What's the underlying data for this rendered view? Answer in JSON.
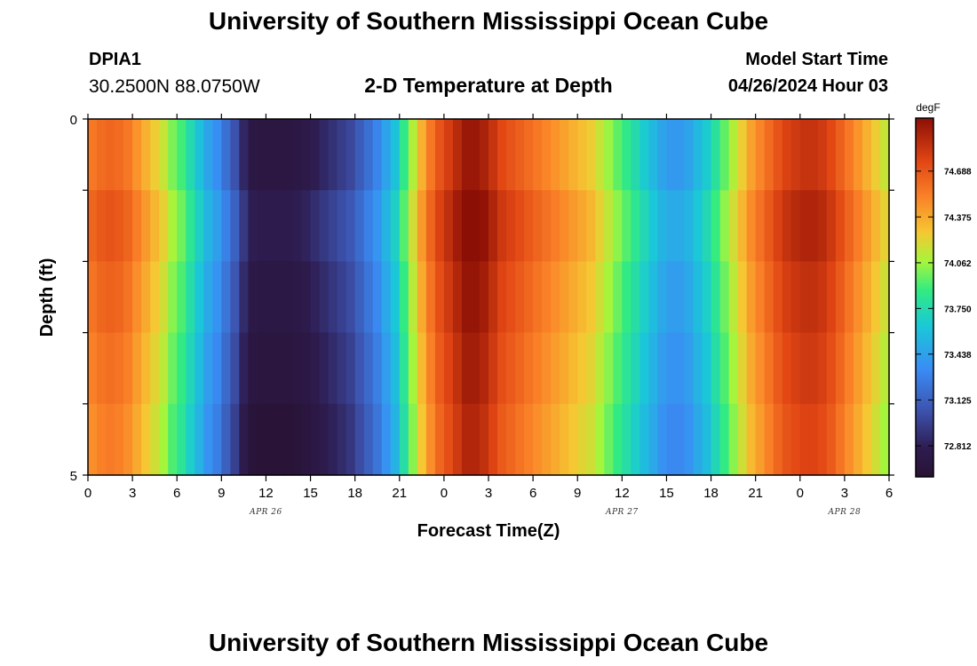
{
  "page": {
    "title_top": "University of Southern Mississippi Ocean Cube",
    "title_bottom": "University of Southern Mississippi Ocean Cube",
    "station_id": "DPIA1",
    "coordinates": "30.2500N  88.0750W",
    "model_start_label": "Model Start Time",
    "model_start_value": "04/26/2024 Hour 03"
  },
  "chart_data": {
    "type": "heatmap",
    "title": "2-D Temperature at Depth",
    "xlabel": "Forecast Time(Z)",
    "ylabel": "Depth (ft)",
    "x_ticks": [
      "0",
      "3",
      "6",
      "9",
      "12",
      "15",
      "18",
      "21",
      "0",
      "3",
      "6",
      "9",
      "12",
      "15",
      "18",
      "21",
      "0",
      "3",
      "6"
    ],
    "x_hours_per_tick": 3,
    "x_range_hours": [
      0,
      54
    ],
    "date_labels": [
      {
        "text": "APR 26",
        "hour": 12
      },
      {
        "text": "APR 27",
        "hour": 36
      },
      {
        "text": "APR 28",
        "hour": 51
      }
    ],
    "y_ticks": [
      "0",
      "5"
    ],
    "y_range": [
      0,
      5
    ],
    "depth_levels": [
      0,
      1,
      2,
      3,
      4,
      5
    ],
    "colorbar": {
      "unit": "degF",
      "ticks": [
        "74.688",
        "74.375",
        "74.062",
        "73.750",
        "73.438",
        "73.125",
        "72.812"
      ],
      "range": [
        72.6,
        75.05
      ]
    },
    "temperature_profile_surface": [
      74.55,
      74.6,
      74.62,
      74.6,
      74.55,
      74.45,
      74.35,
      74.25,
      74.15,
      74.0,
      73.9,
      73.75,
      73.6,
      73.45,
      73.35,
      73.2,
      73.05,
      72.85,
      72.72,
      72.7,
      72.7,
      72.7,
      72.7,
      72.72,
      72.75,
      72.8,
      72.85,
      72.9,
      72.95,
      73.0,
      73.1,
      73.2,
      73.3,
      73.45,
      73.6,
      73.85,
      74.1,
      74.35,
      74.55,
      74.7,
      74.8,
      74.9,
      75.0,
      75.0,
      74.95,
      74.85,
      74.75,
      74.7,
      74.65,
      74.6,
      74.55,
      74.5,
      74.45,
      74.4,
      74.35,
      74.3,
      74.25,
      74.15,
      74.05,
      73.95,
      73.85,
      73.75,
      73.65,
      73.55,
      73.45,
      73.4,
      73.4,
      73.45,
      73.55,
      73.65,
      73.8,
      73.95,
      74.1,
      74.25,
      74.4,
      74.5,
      74.6,
      74.7,
      74.78,
      74.82,
      74.85,
      74.85,
      74.82,
      74.75,
      74.65,
      74.55,
      74.45,
      74.35,
      74.25,
      74.15
    ],
    "depth_offsets_per_layer": [
      0.0,
      0.08,
      0.02,
      -0.03,
      -0.08
    ],
    "bottom_layer_shift": -0.12
  }
}
